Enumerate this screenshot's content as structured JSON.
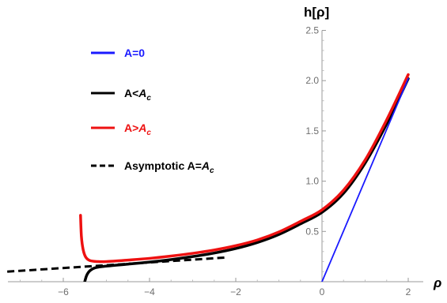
{
  "chart_data": {
    "type": "line",
    "title": "",
    "xlabel": "ρ",
    "ylabel": "h[ρ]",
    "xlim": [
      -7.3,
      2.25
    ],
    "ylim": [
      0,
      2.5
    ],
    "x_ticks": [
      -6,
      -4,
      -2,
      0,
      2
    ],
    "x_tick_labels": [
      "−6",
      "−4",
      "−2",
      "0",
      "2"
    ],
    "y_ticks": [
      0.5,
      1.0,
      1.5,
      2.0,
      2.5
    ],
    "y_tick_labels": [
      "0.5",
      "1.0",
      "1.5",
      "2.0",
      "2.5"
    ],
    "grid": false,
    "legend_position": "top-left",
    "legend": [
      {
        "series": "A=0",
        "text": "A=0",
        "sub": "",
        "color": "#1a1aff",
        "dashed": false
      },
      {
        "series": "A<Ac",
        "text": "A<",
        "sub": "A",
        "subscript": "c",
        "color": "#000000",
        "dashed": false
      },
      {
        "series": "A>Ac",
        "text": "A>",
        "sub": "A",
        "subscript": "c",
        "color": "#ee1111",
        "dashed": false
      },
      {
        "series": "Asymptotic A=Ac",
        "text": "Asymptotic A=",
        "sub": "A",
        "subscript": "c",
        "color": "#000000",
        "dashed": true
      }
    ],
    "series": [
      {
        "name": "A=0",
        "color": "#1a1aff",
        "stroke_width": 1.8,
        "dashed": false,
        "points": [
          [
            0,
            0
          ],
          [
            2,
            2.02
          ]
        ]
      },
      {
        "name": "A<Ac",
        "color": "#000000",
        "stroke_width": 3.5,
        "dashed": false,
        "points": [
          [
            -5.52,
            -0.03
          ],
          [
            -5.46,
            0.06
          ],
          [
            -5.38,
            0.11
          ],
          [
            -5.25,
            0.14
          ],
          [
            -5.0,
            0.155
          ],
          [
            -4.5,
            0.175
          ],
          [
            -4.0,
            0.195
          ],
          [
            -3.5,
            0.22
          ],
          [
            -3.0,
            0.25
          ],
          [
            -2.5,
            0.285
          ],
          [
            -2.0,
            0.33
          ],
          [
            -1.5,
            0.39
          ],
          [
            -1.0,
            0.47
          ],
          [
            -0.5,
            0.575
          ],
          [
            0.0,
            0.69
          ],
          [
            0.5,
            0.88
          ],
          [
            1.0,
            1.18
          ],
          [
            1.5,
            1.57
          ],
          [
            2.0,
            2.02
          ]
        ]
      },
      {
        "name": "A>Ac",
        "color": "#ee1111",
        "stroke_width": 3.5,
        "dashed": false,
        "points": [
          [
            -5.6,
            0.66
          ],
          [
            -5.58,
            0.45
          ],
          [
            -5.54,
            0.32
          ],
          [
            -5.48,
            0.245
          ],
          [
            -5.38,
            0.21
          ],
          [
            -5.2,
            0.2
          ],
          [
            -5.0,
            0.2
          ],
          [
            -4.5,
            0.215
          ],
          [
            -4.0,
            0.232
          ],
          [
            -3.5,
            0.255
          ],
          [
            -3.0,
            0.282
          ],
          [
            -2.5,
            0.315
          ],
          [
            -2.0,
            0.358
          ],
          [
            -1.5,
            0.415
          ],
          [
            -1.0,
            0.495
          ],
          [
            -0.5,
            0.6
          ],
          [
            0.0,
            0.715
          ],
          [
            0.5,
            0.91
          ],
          [
            1.0,
            1.21
          ],
          [
            1.5,
            1.61
          ],
          [
            2.0,
            2.06
          ]
        ]
      },
      {
        "name": "Asymptotic A=Ac",
        "color": "#000000",
        "stroke_width": 3,
        "dashed": true,
        "points": [
          [
            -7.3,
            0.1
          ],
          [
            -2.25,
            0.24
          ]
        ]
      }
    ]
  }
}
